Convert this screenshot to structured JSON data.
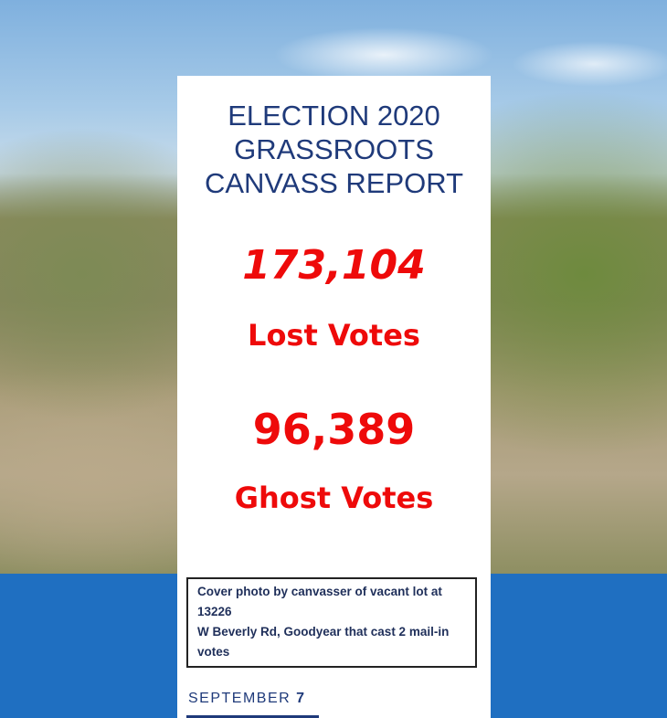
{
  "title_lines": [
    "ELECTION 2020",
    "GRASSROOTS",
    "CANVASS REPORT"
  ],
  "lost_votes": {
    "count": "173,104",
    "label": "Lost Votes"
  },
  "ghost_votes": {
    "count": "96,389",
    "label": "Ghost Votes"
  },
  "caption_lines": [
    "Cover photo by canvasser of vacant lot at 13226",
    "W Beverly Rd, Goodyear that cast 2 mail-in votes"
  ],
  "date": {
    "month": "SEPTEMBER",
    "day": "7"
  },
  "colors": {
    "title": "#1f3a7a",
    "accent_red": "#ee0a0a",
    "band_blue": "#1f6fc1"
  }
}
